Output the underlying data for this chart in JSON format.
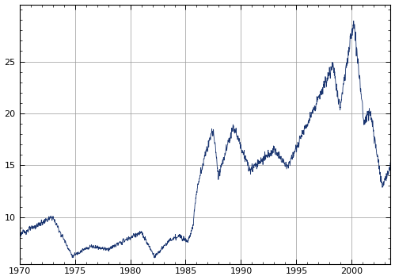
{
  "title": "",
  "xlabel": "",
  "ylabel": "",
  "xlim": [
    1970,
    2003.5
  ],
  "ylim": [
    5.5,
    30.5
  ],
  "yticks": [
    10,
    15,
    20,
    25
  ],
  "xticks": [
    1970,
    1975,
    1980,
    1985,
    1990,
    1995,
    2000
  ],
  "line_color": "#1a3570",
  "line_width": 0.6,
  "background_color": "#ffffff",
  "grid_color": "#999999",
  "grid_linewidth": 0.5
}
